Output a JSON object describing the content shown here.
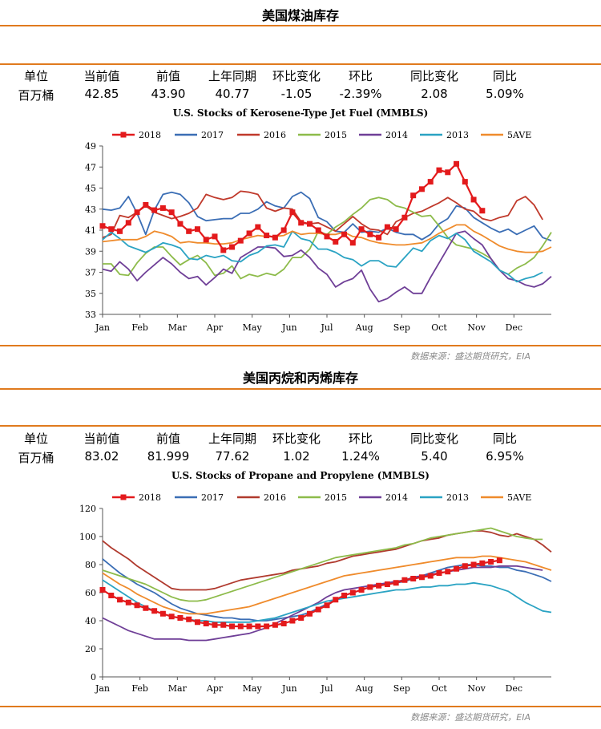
{
  "section1": {
    "title": "美国煤油库存",
    "headers": [
      "单位",
      "当前值",
      "前值",
      "上年同期",
      "环比变化",
      "环比",
      "同比变化",
      "同比"
    ],
    "values": [
      "百万桶",
      "42.85",
      "43.90",
      "40.77",
      "-1.05",
      "-2.39%",
      "2.08",
      "5.09%"
    ],
    "source": "数据来源：盛达期货研究，EIA"
  },
  "section2": {
    "title": "美国丙烷和丙烯库存",
    "headers": [
      "单位",
      "当前值",
      "前值",
      "上年同期",
      "环比变化",
      "环比",
      "同比变化",
      "同比"
    ],
    "values": [
      "百万桶",
      "83.02",
      "81.999",
      "77.62",
      "1.02",
      "1.24%",
      "5.40",
      "6.95%"
    ],
    "source": "数据来源：盛达期货研究，EIA"
  },
  "chart_data": [
    {
      "type": "line",
      "title": "U.S. Stocks of Kerosene-Type Jet Fuel (MMBLS)",
      "xlabel": "",
      "ylabel": "",
      "ylim": [
        33,
        49
      ],
      "yticks": [
        33,
        35,
        37,
        39,
        41,
        43,
        45,
        47,
        49
      ],
      "xticks": [
        "Jan",
        "Feb",
        "Mar",
        "Apr",
        "May",
        "Jun",
        "Jul",
        "Aug",
        "Sep",
        "Oct",
        "Nov",
        "Dec"
      ],
      "x_unit": "week",
      "legend_position": "top",
      "grid": false,
      "series": [
        {
          "name": "2018",
          "color": "#e31a1c",
          "marker": "square",
          "values": [
            41.4,
            41.1,
            40.9,
            41.7,
            42.7,
            43.4,
            42.9,
            43.1,
            42.7,
            41.6,
            40.9,
            41.1,
            40.1,
            40.4,
            39.1,
            39.4,
            40.0,
            40.7,
            41.3,
            40.5,
            40.3,
            41.0,
            42.7,
            41.7,
            41.6,
            41.0,
            40.4,
            39.9,
            40.6,
            39.8,
            41.1,
            40.6,
            40.3,
            41.3,
            41.1,
            42.2,
            44.3,
            44.9,
            45.6,
            46.7,
            46.5,
            47.3,
            45.6,
            43.9,
            42.85
          ]
        },
        {
          "name": "2017",
          "color": "#3b6eb5",
          "values": [
            43.0,
            42.9,
            43.1,
            44.2,
            42.6,
            40.6,
            42.9,
            44.4,
            44.6,
            44.4,
            43.6,
            42.3,
            41.9,
            42.0,
            42.1,
            42.1,
            42.6,
            42.6,
            43.0,
            43.7,
            43.3,
            43.1,
            44.2,
            44.6,
            44.0,
            42.2,
            41.8,
            40.9,
            40.8,
            41.6,
            40.8,
            40.9,
            40.8,
            41.2,
            40.8,
            40.6,
            40.6,
            40.1,
            40.6,
            41.6,
            42.1,
            43.3,
            43.1,
            42.2,
            41.7,
            41.2,
            40.8,
            41.1,
            40.6,
            41.0,
            41.4,
            40.3,
            40.0
          ]
        },
        {
          "name": "2016",
          "color": "#c0392b",
          "values": [
            40.3,
            40.6,
            42.4,
            42.2,
            42.7,
            43.3,
            42.7,
            42.4,
            42.1,
            42.3,
            42.6,
            43.1,
            44.4,
            44.1,
            43.9,
            44.1,
            44.7,
            44.6,
            44.4,
            43.1,
            42.8,
            43.1,
            43.0,
            41.8,
            41.6,
            41.7,
            41.3,
            40.9,
            41.6,
            42.3,
            41.6,
            41.1,
            41.0,
            40.6,
            41.8,
            42.2,
            42.6,
            42.8,
            43.2,
            43.6,
            44.1,
            43.6,
            43.0,
            42.8,
            42.1,
            41.9,
            42.2,
            42.4,
            43.8,
            44.2,
            43.4,
            42.0
          ]
        },
        {
          "name": "2015",
          "color": "#8dbb4a",
          "values": [
            37.8,
            37.8,
            36.8,
            36.7,
            37.9,
            38.8,
            39.4,
            39.4,
            38.5,
            37.7,
            38.2,
            38.6,
            37.9,
            36.7,
            36.9,
            37.6,
            36.4,
            36.8,
            36.6,
            36.9,
            36.7,
            37.3,
            38.4,
            38.4,
            39.2,
            40.9,
            40.6,
            41.3,
            41.8,
            42.5,
            43.1,
            43.9,
            44.1,
            43.9,
            43.3,
            43.1,
            42.7,
            42.3,
            42.4,
            41.4,
            40.3,
            39.6,
            39.4,
            39.2,
            38.8,
            38.3,
            37.2,
            36.8,
            37.4,
            37.8,
            38.4,
            39.5,
            40.8
          ]
        },
        {
          "name": "2014",
          "color": "#6f3f97",
          "values": [
            37.3,
            37.1,
            38.0,
            37.3,
            36.2,
            37.0,
            37.7,
            38.4,
            37.8,
            37.0,
            36.4,
            36.6,
            35.8,
            36.5,
            37.3,
            36.9,
            38.4,
            38.9,
            39.4,
            39.4,
            39.3,
            38.5,
            38.6,
            39.1,
            38.4,
            37.4,
            36.8,
            35.6,
            36.1,
            36.4,
            37.2,
            35.4,
            34.2,
            34.5,
            35.1,
            35.6,
            35.0,
            35.0,
            36.5,
            37.9,
            39.3,
            40.7,
            40.9,
            40.2,
            39.6,
            38.3,
            37.2,
            36.4,
            36.2,
            35.8,
            35.6,
            35.9,
            36.6
          ]
        },
        {
          "name": "2013",
          "color": "#2aa3c3",
          "values": [
            40.1,
            40.8,
            40.2,
            39.5,
            39.2,
            38.9,
            39.3,
            39.8,
            39.6,
            39.3,
            38.3,
            38.2,
            38.6,
            38.4,
            38.6,
            38.1,
            38.0,
            38.6,
            38.9,
            39.5,
            39.6,
            39.4,
            40.9,
            40.2,
            40.0,
            39.2,
            39.2,
            38.9,
            38.4,
            38.2,
            37.6,
            38.1,
            38.1,
            37.6,
            37.5,
            38.4,
            39.3,
            39.0,
            40.0,
            40.5,
            40.2,
            40.7,
            40.1,
            39.0,
            38.5,
            38.0,
            37.2,
            36.8,
            36.1,
            36.4,
            36.6,
            37.0
          ]
        },
        {
          "name": "5AVE",
          "color": "#ef8b2c",
          "values": [
            39.9,
            40.0,
            40.1,
            40.1,
            40.1,
            40.4,
            40.9,
            40.7,
            40.4,
            39.8,
            39.9,
            39.8,
            39.8,
            39.7,
            39.7,
            39.8,
            40.1,
            40.3,
            40.5,
            40.4,
            40.4,
            40.5,
            40.9,
            40.6,
            40.7,
            40.7,
            40.6,
            40.6,
            40.8,
            40.4,
            40.3,
            40.0,
            39.8,
            39.7,
            39.6,
            39.6,
            39.7,
            39.8,
            40.2,
            40.7,
            41.1,
            41.5,
            41.5,
            40.9,
            40.5,
            40.0,
            39.5,
            39.2,
            39.0,
            38.9,
            38.9,
            39.0,
            39.4
          ]
        }
      ]
    },
    {
      "type": "line",
      "title": "U.S. Stocks of Propane and Propylene (MMBLS)",
      "xlabel": "",
      "ylabel": "",
      "ylim": [
        0,
        120
      ],
      "yticks": [
        0,
        20,
        40,
        60,
        80,
        100,
        120
      ],
      "xticks": [
        "Jan",
        "Feb",
        "Mar",
        "Apr",
        "May",
        "Jun",
        "Jul",
        "Aug",
        "Sep",
        "Oct",
        "Nov",
        "Dec"
      ],
      "x_unit": "week",
      "legend_position": "top",
      "grid": false,
      "series": [
        {
          "name": "2018",
          "color": "#e31a1c",
          "marker": "square",
          "values": [
            62,
            58,
            55,
            53,
            51,
            49,
            47,
            45,
            43,
            42,
            41,
            39,
            38,
            37,
            37,
            36,
            36,
            36,
            36,
            36,
            37,
            38,
            40,
            42,
            45,
            48,
            51,
            55,
            58,
            60,
            62,
            64,
            65,
            66,
            67,
            69,
            70,
            71,
            72,
            74,
            75,
            77,
            79,
            80,
            81,
            82,
            83.02
          ]
        },
        {
          "name": "2017",
          "color": "#3b6eb5",
          "values": [
            84,
            79,
            74,
            70,
            66,
            63,
            60,
            56,
            52,
            49,
            47,
            45,
            44,
            43,
            42,
            42,
            41,
            41,
            40,
            40,
            41,
            42,
            43,
            44,
            46,
            49,
            52,
            55,
            58,
            60,
            62,
            64,
            65,
            66,
            67,
            68,
            70,
            72,
            74,
            76,
            78,
            79,
            80,
            80,
            79,
            79,
            78,
            78,
            76,
            75,
            73,
            71,
            68
          ]
        },
        {
          "name": "2016",
          "color": "#b03a2e",
          "values": [
            97,
            92,
            88,
            84,
            79,
            75,
            71,
            67,
            63,
            62,
            62,
            62,
            62,
            63,
            65,
            67,
            69,
            70,
            71,
            72,
            73,
            74,
            76,
            77,
            78,
            79,
            81,
            82,
            84,
            86,
            87,
            88,
            89,
            90,
            91,
            93,
            95,
            97,
            98,
            99,
            101,
            102,
            103,
            104,
            104,
            103,
            101,
            100,
            102,
            100,
            98,
            94,
            89
          ]
        },
        {
          "name": "2015",
          "color": "#8dbb4a",
          "values": [
            76,
            74,
            72,
            70,
            68,
            66,
            63,
            60,
            57,
            55,
            54,
            54,
            55,
            57,
            59,
            61,
            63,
            65,
            67,
            69,
            71,
            73,
            75,
            77,
            79,
            81,
            83,
            85,
            86,
            87,
            88,
            89,
            90,
            91,
            92,
            94,
            95,
            97,
            99,
            100,
            101,
            102,
            103,
            104,
            105,
            106,
            104,
            102,
            100,
            99,
            98,
            98
          ]
        },
        {
          "name": "2014",
          "color": "#6f3f97",
          "values": [
            42,
            39,
            36,
            33,
            31,
            29,
            27,
            27,
            27,
            27,
            26,
            26,
            26,
            27,
            28,
            29,
            30,
            31,
            33,
            35,
            38,
            41,
            44,
            47,
            50,
            53,
            57,
            60,
            62,
            63,
            64,
            65,
            66,
            67,
            68,
            69,
            71,
            72,
            73,
            74,
            75,
            76,
            77,
            78,
            78,
            78,
            79,
            79,
            79,
            78,
            77,
            76
          ]
        },
        {
          "name": "2013",
          "color": "#2aa3c3",
          "values": [
            69,
            65,
            61,
            57,
            53,
            50,
            47,
            45,
            43,
            42,
            41,
            40,
            40,
            39,
            39,
            39,
            39,
            39,
            40,
            41,
            42,
            44,
            46,
            48,
            50,
            52,
            54,
            55,
            56,
            57,
            58,
            59,
            60,
            61,
            62,
            62,
            63,
            64,
            64,
            65,
            65,
            66,
            66,
            67,
            66,
            65,
            63,
            61,
            57,
            53,
            50,
            47,
            46
          ]
        },
        {
          "name": "5AVE",
          "color": "#ef8b2c",
          "values": [
            74,
            70,
            66,
            63,
            59,
            56,
            53,
            50,
            48,
            46,
            45,
            45,
            45,
            46,
            47,
            48,
            49,
            50,
            52,
            54,
            56,
            58,
            60,
            62,
            64,
            66,
            68,
            70,
            72,
            73,
            74,
            75,
            76,
            77,
            78,
            79,
            80,
            81,
            82,
            83,
            84,
            85,
            85,
            85,
            86,
            86,
            85,
            84,
            83,
            82,
            80,
            78,
            76
          ]
        }
      ]
    }
  ]
}
